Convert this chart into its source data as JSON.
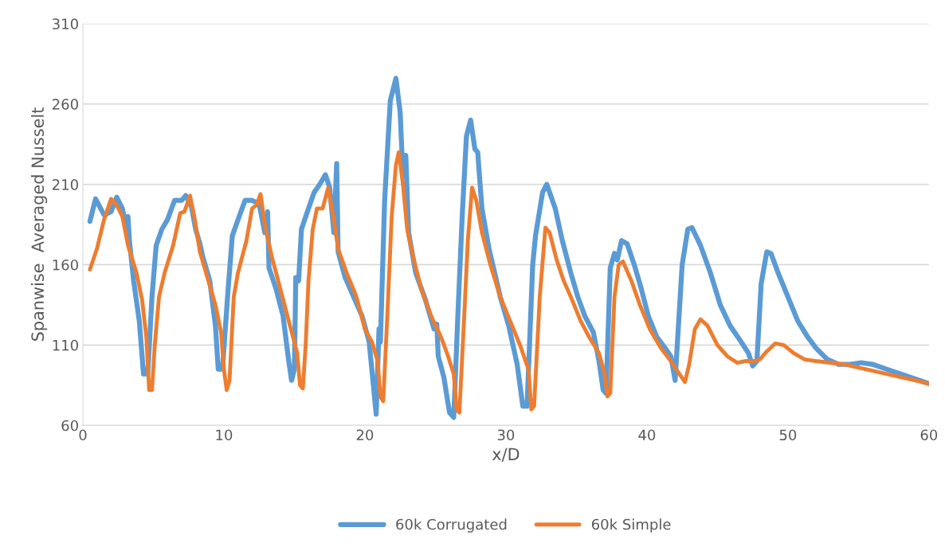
{
  "chart_data": {
    "type": "line",
    "xlabel": "x/D",
    "ylabel": "Spanwise  Averaged Nusselt",
    "xlim": [
      0,
      60
    ],
    "xticks": [
      0,
      10,
      20,
      30,
      40,
      50,
      60
    ],
    "ylim": [
      60,
      310
    ],
    "yticks": [
      60,
      110,
      160,
      210,
      260,
      310
    ],
    "grid": "y",
    "legend": "bottom",
    "marker": "none",
    "line_style": "solid",
    "series": [
      {
        "name": "60k Corrugated",
        "color": "#5b9bd5",
        "x": [
          0.5,
          0.9,
          1.5,
          2.0,
          2.4,
          2.8,
          3.1,
          3.2,
          3.3,
          3.6,
          4.0,
          4.3,
          4.6,
          4.9,
          5.2,
          5.6,
          6.0,
          6.5,
          7.0,
          7.3,
          7.7,
          8.0,
          8.3,
          8.5,
          9.0,
          9.4,
          9.6,
          9.9,
          10.3,
          10.6,
          11.0,
          11.5,
          12.0,
          12.5,
          12.9,
          13.1,
          13.2,
          13.7,
          14.2,
          14.6,
          14.8,
          15.0,
          15.1,
          15.3,
          15.5,
          16.0,
          16.4,
          16.8,
          17.2,
          17.5,
          17.8,
          18.0,
          18.1,
          18.6,
          19.3,
          19.8,
          20.3,
          20.6,
          20.8,
          21.0,
          21.1,
          21.4,
          21.8,
          22.2,
          22.5,
          22.7,
          22.9,
          23.1,
          23.6,
          24.3,
          24.9,
          25.1,
          25.2,
          25.6,
          26.0,
          26.3,
          26.6,
          26.9,
          27.2,
          27.5,
          27.8,
          28.0,
          28.3,
          28.8,
          29.6,
          30.2,
          30.8,
          31.2,
          31.5,
          31.9,
          32.1,
          32.6,
          32.9,
          33.5,
          34.0,
          34.6,
          35.1,
          35.6,
          36.2,
          36.6,
          36.9,
          37.1,
          37.4,
          37.7,
          37.9,
          38.2,
          38.6,
          39.1,
          39.6,
          40.1,
          40.7,
          41.3,
          41.7,
          42.0,
          42.5,
          42.9,
          43.2,
          43.8,
          44.5,
          45.2,
          45.9,
          46.6,
          47.2,
          47.5,
          47.8,
          48.1,
          48.5,
          48.8,
          49.3,
          50.0,
          50.7,
          51.4,
          52.0,
          52.8,
          53.6,
          54.4,
          55.2,
          56.0,
          57.0,
          58.0,
          59.0,
          60.0
        ],
        "values": [
          187,
          201,
          191,
          193,
          202,
          195,
          182,
          190,
          175,
          150,
          125,
          92,
          92,
          140,
          172,
          182,
          188,
          200,
          200,
          203,
          196,
          182,
          173,
          165,
          150,
          122,
          95,
          95,
          145,
          178,
          188,
          200,
          200,
          198,
          180,
          193,
          158,
          145,
          128,
          100,
          88,
          95,
          152,
          150,
          182,
          195,
          205,
          210,
          216,
          208,
          180,
          223,
          168,
          152,
          138,
          128,
          112,
          85,
          67,
          120,
          112,
          200,
          262,
          276,
          255,
          215,
          228,
          180,
          155,
          138,
          120,
          123,
          103,
          90,
          68,
          65,
          130,
          190,
          240,
          250,
          232,
          230,
          195,
          170,
          140,
          122,
          98,
          72,
          72,
          160,
          178,
          205,
          210,
          195,
          175,
          155,
          140,
          128,
          118,
          100,
          82,
          80,
          158,
          167,
          163,
          175,
          173,
          160,
          145,
          128,
          115,
          108,
          103,
          88,
          160,
          182,
          183,
          172,
          155,
          135,
          122,
          113,
          105,
          97,
          100,
          148,
          168,
          167,
          155,
          140,
          125,
          115,
          108,
          101,
          98,
          98,
          99,
          98,
          95,
          92,
          89,
          86
        ]
      },
      {
        "name": "60k Simple",
        "color": "#ed7d31",
        "x": [
          0.5,
          1.0,
          1.5,
          2.0,
          2.4,
          2.8,
          3.2,
          3.8,
          4.2,
          4.5,
          4.7,
          4.9,
          5.1,
          5.4,
          5.8,
          6.4,
          6.9,
          7.2,
          7.4,
          7.6,
          7.9,
          8.3,
          8.9,
          9.4,
          9.8,
          10.0,
          10.2,
          10.4,
          10.7,
          11.0,
          11.6,
          12.0,
          12.3,
          12.6,
          12.9,
          13.4,
          14.0,
          14.6,
          15.2,
          15.4,
          15.6,
          15.8,
          16.0,
          16.3,
          16.6,
          17.0,
          17.4,
          17.8,
          18.1,
          18.7,
          19.4,
          20.0,
          20.5,
          20.9,
          21.1,
          21.3,
          21.6,
          21.9,
          22.2,
          22.4,
          22.7,
          23.0,
          23.5,
          24.0,
          24.7,
          25.4,
          25.9,
          26.3,
          26.5,
          26.7,
          27.0,
          27.3,
          27.6,
          27.9,
          28.3,
          28.9,
          29.6,
          30.3,
          31.0,
          31.6,
          31.8,
          32.0,
          32.4,
          32.8,
          33.1,
          33.6,
          34.1,
          34.7,
          35.3,
          35.9,
          36.6,
          37.0,
          37.2,
          37.4,
          37.7,
          38.0,
          38.3,
          38.9,
          39.5,
          40.2,
          41.0,
          41.7,
          42.3,
          42.7,
          43.0,
          43.4,
          43.8,
          44.3,
          45.0,
          45.7,
          46.4,
          47.0,
          47.6,
          48.0,
          48.5,
          49.1,
          49.7,
          50.4,
          51.2,
          52.0,
          53.0,
          54.0,
          55.0,
          56.0,
          57.0,
          58.0,
          59.0,
          60.0
        ],
        "values": [
          157,
          170,
          188,
          201,
          197,
          190,
          172,
          155,
          138,
          115,
          82,
          82,
          110,
          140,
          155,
          172,
          192,
          193,
          198,
          203,
          190,
          168,
          150,
          135,
          118,
          95,
          82,
          88,
          140,
          155,
          175,
          195,
          197,
          204,
          185,
          165,
          145,
          125,
          105,
          85,
          83,
          110,
          150,
          182,
          195,
          195,
          208,
          188,
          170,
          155,
          140,
          120,
          112,
          100,
          78,
          75,
          130,
          190,
          222,
          230,
          210,
          182,
          162,
          145,
          128,
          115,
          103,
          92,
          70,
          68,
          120,
          175,
          208,
          200,
          180,
          160,
          140,
          125,
          110,
          95,
          70,
          72,
          140,
          183,
          180,
          163,
          150,
          138,
          125,
          115,
          105,
          92,
          78,
          80,
          140,
          160,
          162,
          150,
          135,
          120,
          108,
          100,
          92,
          87,
          98,
          120,
          126,
          122,
          110,
          103,
          99,
          100,
          100,
          101,
          106,
          111,
          110,
          105,
          101,
          100,
          99,
          98,
          96,
          94,
          92,
          90,
          88,
          86
        ]
      }
    ]
  }
}
